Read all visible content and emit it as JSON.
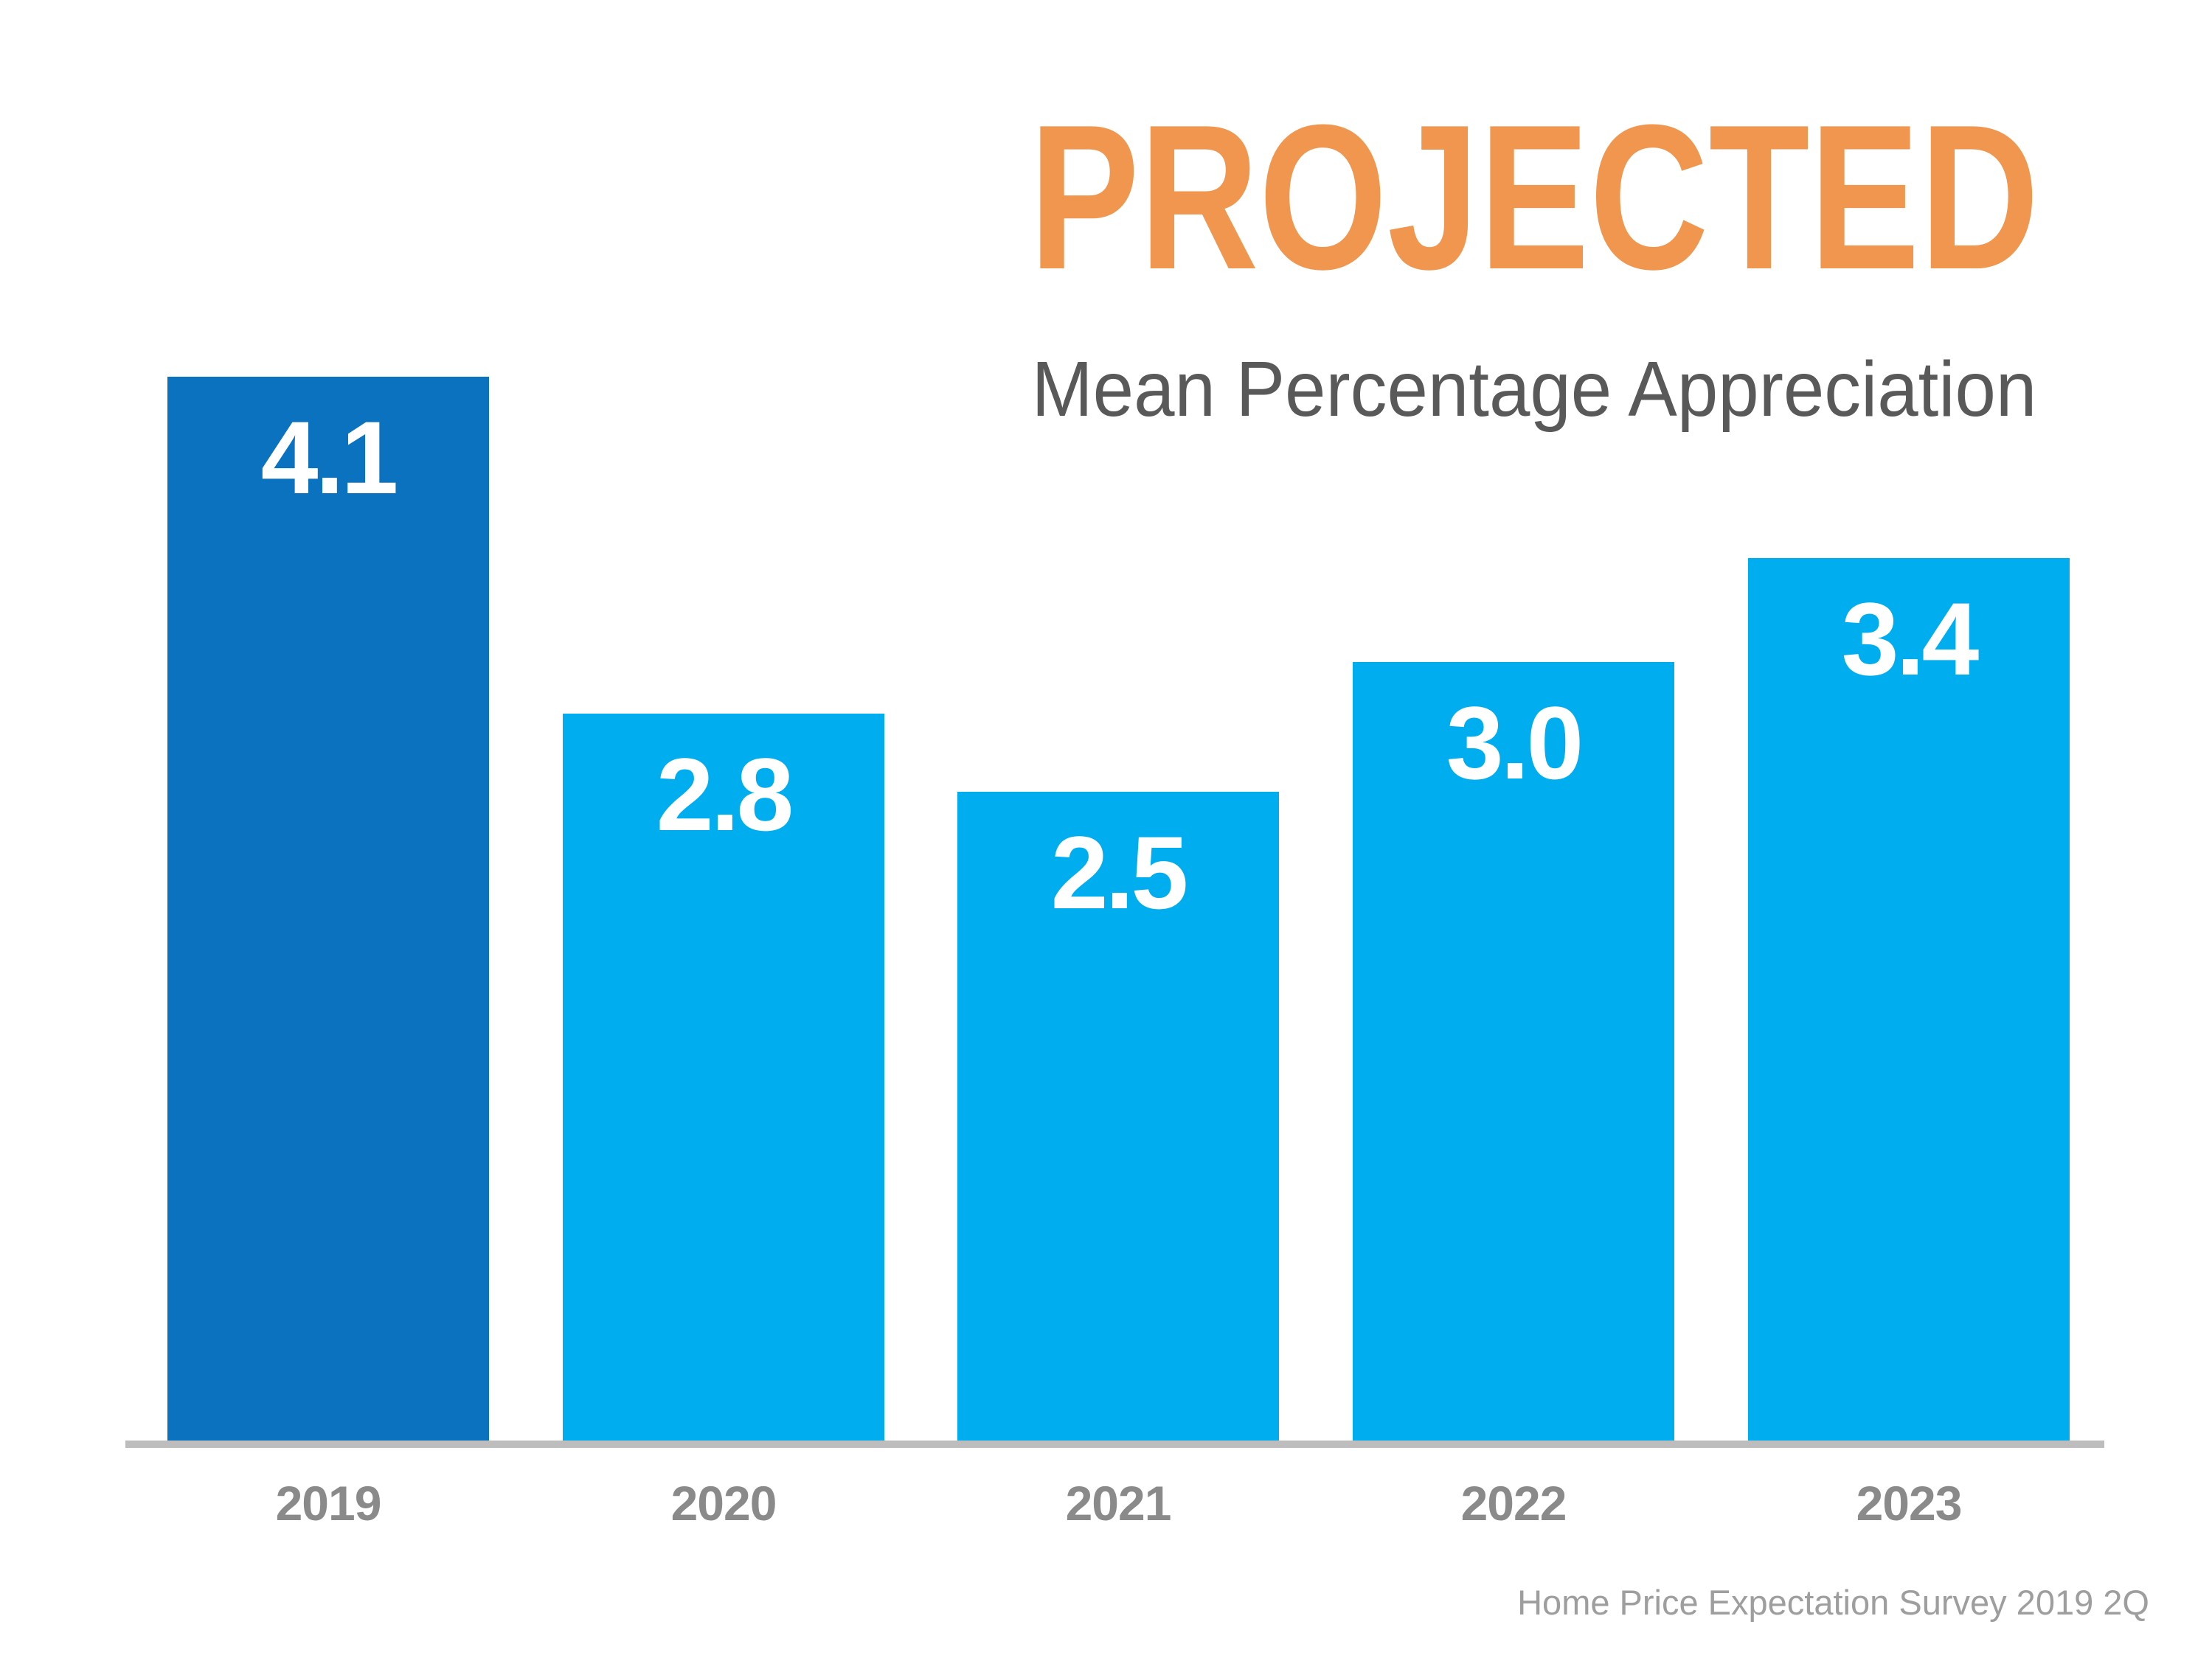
{
  "title": "PROJECTED",
  "subtitle": "Mean Percentage Appreciation",
  "source": "Home Price Expectation Survey 2019 2Q",
  "colors": {
    "title_orange": "#F0964E",
    "subtitle_gray": "#595959",
    "bar_blue_dark": "#0B72BF",
    "bar_blue_light": "#00AEEF",
    "axis_gray": "#BDBDBD",
    "year_label_gray": "#8A8A8A",
    "source_gray": "#9E9E9E",
    "value_label_white": "#FFFFFF"
  },
  "chart_data": {
    "type": "bar",
    "title": "PROJECTED",
    "subtitle": "Mean Percentage Appreciation",
    "categories": [
      "2019",
      "2020",
      "2021",
      "2022",
      "2023"
    ],
    "values": [
      4.1,
      2.8,
      2.5,
      3.0,
      3.4
    ],
    "value_labels": [
      "4.1",
      "2.8",
      "2.5",
      "3.0",
      "3.4"
    ],
    "bar_colors": [
      "#0B72BF",
      "#00AEEF",
      "#00AEEF",
      "#00AEEF",
      "#00AEEF"
    ],
    "highlight_index": 0,
    "xlabel": "",
    "ylabel": "",
    "ylim": [
      0,
      4.5
    ],
    "grid": false,
    "legend": false,
    "value_label_position": "inside-top",
    "source": "Home Price Expectation Survey 2019 2Q"
  }
}
